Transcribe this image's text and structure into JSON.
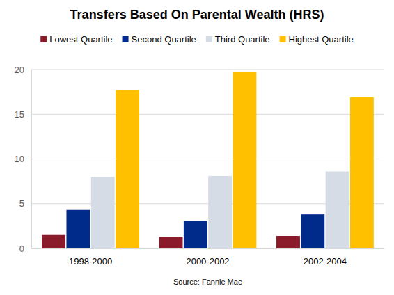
{
  "chart_data": {
    "type": "bar",
    "title": "Transfers Based On Parental Wealth (HRS)",
    "categories": [
      "1998-2000",
      "2000-2002",
      "2002-2004"
    ],
    "series": [
      {
        "name": "Lowest Quartile",
        "color": "#8b1a2b",
        "values": [
          1.5,
          1.3,
          1.4
        ]
      },
      {
        "name": "Second Quartile",
        "color": "#002b8a",
        "values": [
          4.3,
          3.1,
          3.8
        ]
      },
      {
        "name": "Third Quartile",
        "color": "#d6dce5",
        "values": [
          8.0,
          8.1,
          8.6
        ]
      },
      {
        "name": "Highest Quartile",
        "color": "#ffc000",
        "values": [
          17.7,
          19.7,
          16.9
        ]
      }
    ],
    "ylim": [
      0,
      20
    ],
    "yticks": [
      0,
      5,
      10,
      15,
      20
    ],
    "grid": true,
    "legend": "top",
    "annotations": [
      "Source: Fannie Mae"
    ]
  }
}
